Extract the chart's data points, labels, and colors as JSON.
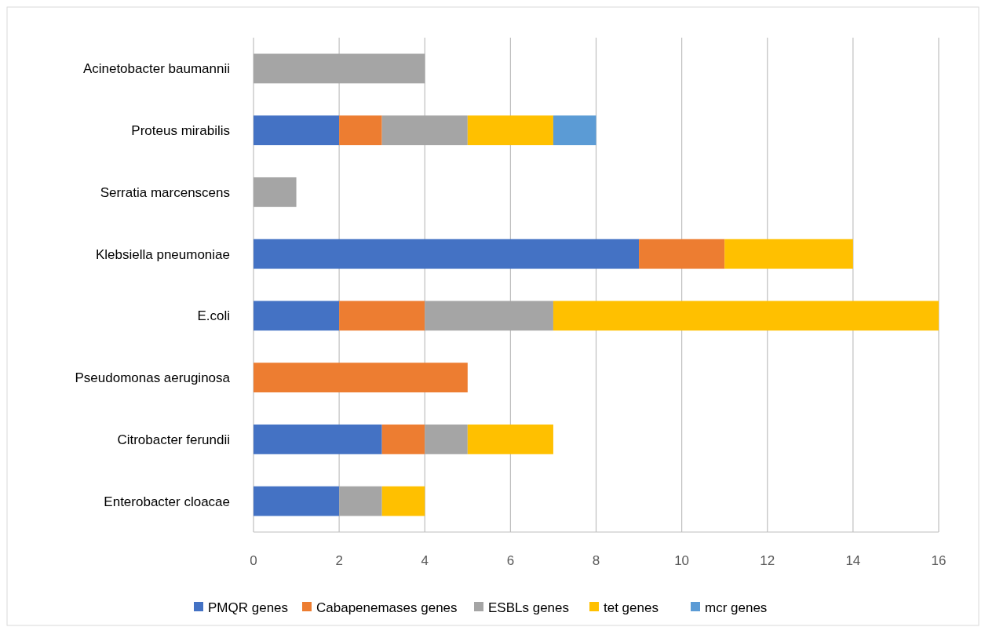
{
  "chart_data": {
    "type": "bar",
    "orientation": "horizontal",
    "stacked": true,
    "grid": "x",
    "legend": "bottom",
    "categories": [
      "Acinetobacter baumannii",
      "Proteus mirabilis",
      "Serratia marcenscens",
      "Klebsiella pneumoniae",
      "E.coli",
      "Pseudomonas aeruginosa",
      "Citrobacter ferundii",
      "Enterobacter cloacae"
    ],
    "series": [
      {
        "name": "PMQR genes",
        "color": "#4472c4",
        "values": [
          null,
          2,
          null,
          9,
          2,
          null,
          3,
          2
        ]
      },
      {
        "name": "Cabapenemases genes",
        "color": "#ed7d31",
        "values": [
          null,
          1,
          null,
          2,
          2,
          5,
          1,
          null
        ]
      },
      {
        "name": "ESBLs genes",
        "color": "#a5a5a5",
        "values": [
          4,
          2,
          1,
          null,
          3,
          null,
          1,
          1
        ]
      },
      {
        "name": "tet genes",
        "color": "#ffc000",
        "values": [
          null,
          2,
          null,
          3,
          9,
          null,
          2,
          1
        ]
      },
      {
        "name": "mcr genes",
        "color": "#5b9bd5",
        "values": [
          null,
          1,
          null,
          null,
          null,
          null,
          null,
          null
        ]
      }
    ],
    "xlim": [
      0,
      16
    ],
    "xticks": [
      0,
      2,
      4,
      6,
      8,
      10,
      12,
      14,
      16
    ]
  }
}
